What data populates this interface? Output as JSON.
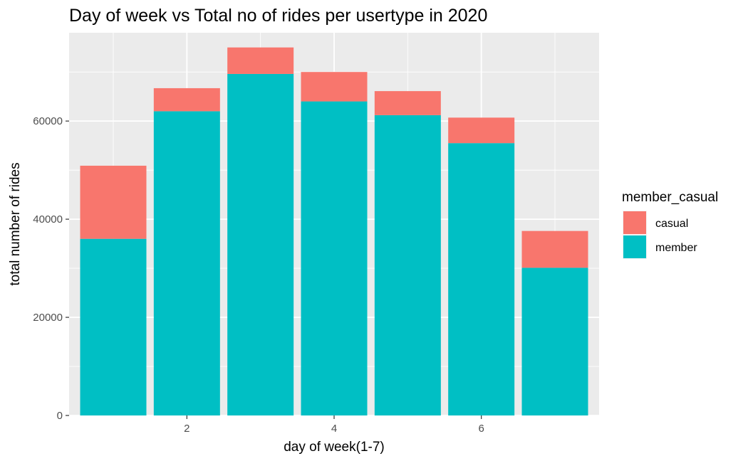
{
  "chart_data": {
    "type": "bar",
    "stacked": true,
    "title": "Day of week vs Total no of rides per usertype in 2020",
    "xlabel": "day of week(1-7)",
    "ylabel": "total number of rides",
    "x": [
      1,
      2,
      3,
      4,
      5,
      6,
      7
    ],
    "xlim": [
      0.4,
      7.6
    ],
    "ylim": [
      0,
      78000
    ],
    "x_ticks": [
      2,
      4,
      6
    ],
    "y_ticks": [
      0,
      20000,
      40000,
      60000
    ],
    "grid": true,
    "legend_title": "member_casual",
    "legend_position": "right",
    "series": [
      {
        "name": "member",
        "color": "#00BFC4",
        "values": [
          36000,
          62000,
          69600,
          64000,
          61200,
          55500,
          30100
        ]
      },
      {
        "name": "casual",
        "color": "#F8766D",
        "values": [
          14900,
          4700,
          5400,
          6000,
          4900,
          5200,
          7500
        ]
      }
    ],
    "legend_order": [
      "casual",
      "member"
    ]
  }
}
